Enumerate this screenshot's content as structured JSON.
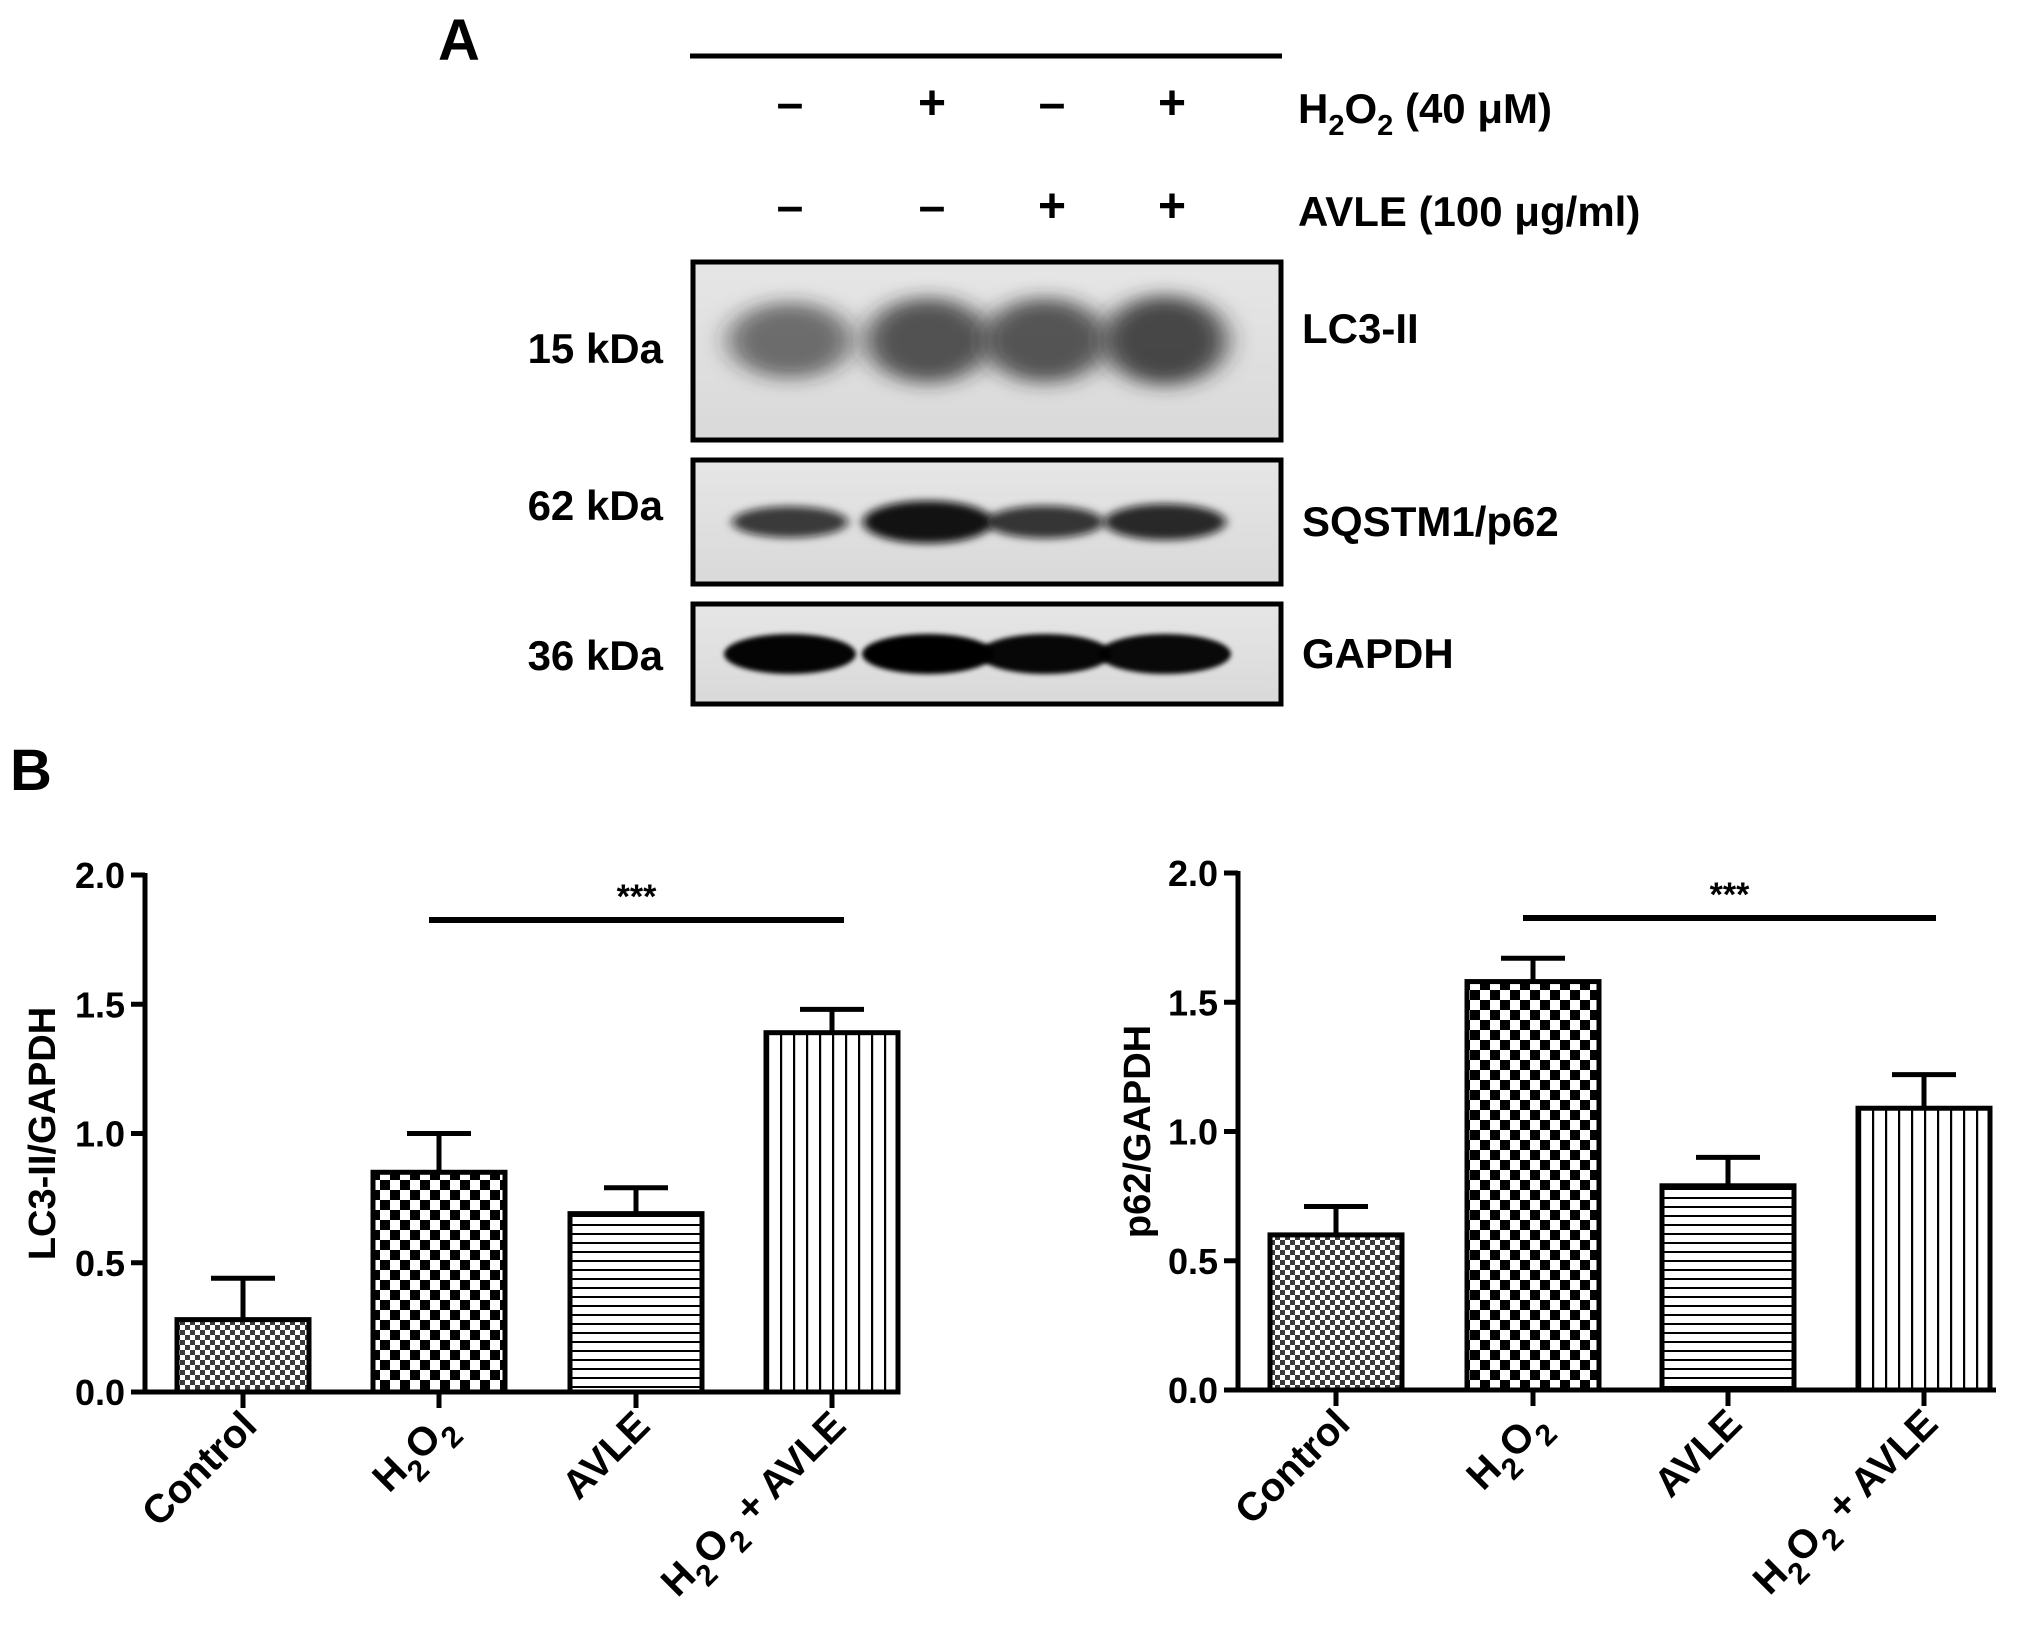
{
  "panel_a": {
    "label": "A",
    "treatment_rows": [
      {
        "label_main": "H",
        "label_sub1": "2",
        "label_mid": "O",
        "label_sub2": "2",
        "label_tail": " (40 μM)",
        "signs": [
          "-",
          "+",
          "-",
          "+"
        ]
      },
      {
        "label_main": "AVLE (100 μg/ml)",
        "label_sub1": "",
        "label_mid": "",
        "label_sub2": "",
        "label_tail": "",
        "signs": [
          "-",
          "-",
          "+",
          "+"
        ]
      }
    ],
    "blots": [
      {
        "name": "LC3-II",
        "marker": "15 kDa",
        "intensities": [
          0.45,
          0.7,
          0.68,
          0.82
        ],
        "band_style": "diffuse"
      },
      {
        "name": "SQSTM1/p62",
        "marker": "62 kDa",
        "intensities": [
          0.55,
          0.95,
          0.6,
          0.72
        ],
        "band_style": "sharp"
      },
      {
        "name": "GAPDH",
        "marker": "36 kDa",
        "intensities": [
          0.98,
          1.0,
          0.97,
          0.96
        ],
        "band_style": "solid"
      }
    ]
  },
  "panel_b": {
    "label": "B"
  },
  "chart_data": [
    {
      "type": "bar",
      "ylabel": "LC3-II/GAPDH",
      "ylim": [
        0,
        2.0
      ],
      "yticks": [
        "0.0",
        "0.5",
        "1.0",
        "1.5",
        "2.0"
      ],
      "categories": [
        {
          "parts": [
            [
              "Control",
              false
            ]
          ]
        },
        {
          "parts": [
            [
              "H",
              false
            ],
            [
              "2",
              true
            ],
            [
              "O",
              false
            ],
            [
              "2",
              true
            ]
          ]
        },
        {
          "parts": [
            [
              "AVLE",
              false
            ]
          ]
        },
        {
          "parts": [
            [
              "H",
              false
            ],
            [
              "2",
              true
            ],
            [
              "O",
              false
            ],
            [
              "2",
              true
            ],
            [
              " + AVLE",
              false
            ]
          ]
        }
      ],
      "values": [
        0.28,
        0.85,
        0.69,
        1.39
      ],
      "errors": [
        0.16,
        0.15,
        0.1,
        0.09
      ],
      "patterns": [
        "fine-check",
        "checker",
        "horizontal-lines",
        "vertical-lines"
      ],
      "significance": {
        "from": 1,
        "to": 3,
        "label": "***"
      }
    },
    {
      "type": "bar",
      "ylabel": "p62/GAPDH",
      "ylim": [
        0,
        2.0
      ],
      "yticks": [
        "0.0",
        "0.5",
        "1.0",
        "1.5",
        "2.0"
      ],
      "categories": [
        {
          "parts": [
            [
              "Control",
              false
            ]
          ]
        },
        {
          "parts": [
            [
              "H",
              false
            ],
            [
              "2",
              true
            ],
            [
              "O",
              false
            ],
            [
              "2",
              true
            ]
          ]
        },
        {
          "parts": [
            [
              "AVLE",
              false
            ]
          ]
        },
        {
          "parts": [
            [
              "H",
              false
            ],
            [
              "2",
              true
            ],
            [
              "O",
              false
            ],
            [
              "2",
              true
            ],
            [
              " + AVLE",
              false
            ]
          ]
        }
      ],
      "values": [
        0.6,
        1.58,
        0.79,
        1.09
      ],
      "errors": [
        0.11,
        0.09,
        0.11,
        0.13
      ],
      "patterns": [
        "fine-check",
        "checker",
        "horizontal-lines",
        "vertical-lines"
      ],
      "significance": {
        "from": 1,
        "to": 3,
        "label": "***"
      }
    }
  ]
}
